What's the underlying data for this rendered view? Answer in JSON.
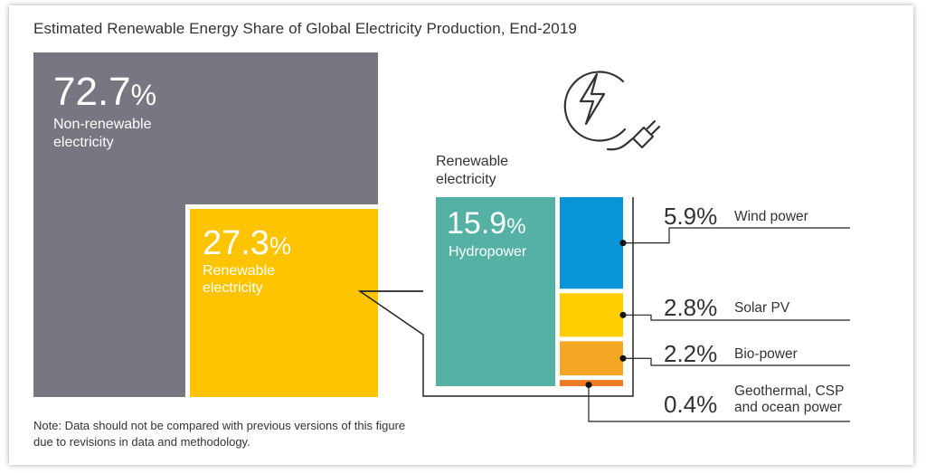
{
  "chart_data": {
    "type": "treemap",
    "title": "Estimated Renewable Energy Share of Global Electricity Production, End-2019",
    "note": [
      "Note: Data should not be compared with previous versions of this figure",
      "due to revisions in data and methodology."
    ],
    "main": [
      {
        "name": "Non-renewable electricity",
        "label_lines": [
          "Non-renewable",
          "electricity"
        ],
        "value": 72.7,
        "display": "72.7",
        "color": "#787680"
      },
      {
        "name": "Renewable electricity",
        "label_lines": [
          "Renewable",
          "electricity"
        ],
        "value": 27.3,
        "display": "27.3",
        "color": "#ffc400"
      }
    ],
    "renewable_breakdown": {
      "header_lines": [
        "Renewable",
        "electricity"
      ],
      "items": [
        {
          "name": "Hydropower",
          "label_lines": [
            "Hydropower"
          ],
          "value": 15.9,
          "display": "15.9",
          "color": "#54b1a4"
        },
        {
          "name": "Wind power",
          "label_lines": [
            "Wind power"
          ],
          "value": 5.9,
          "display": "5.9",
          "color": "#0a95d8"
        },
        {
          "name": "Solar PV",
          "label_lines": [
            "Solar PV"
          ],
          "value": 2.8,
          "display": "2.8",
          "color": "#ffcd00"
        },
        {
          "name": "Bio-power",
          "label_lines": [
            "Bio-power"
          ],
          "value": 2.2,
          "display": "2.2",
          "color": "#f5a623"
        },
        {
          "name": "Geothermal, CSP and ocean power",
          "label_lines": [
            "Geothermal, CSP",
            "and ocean power"
          ],
          "value": 0.4,
          "display": "0.4",
          "color": "#f07a22"
        }
      ]
    },
    "percent_symbol": "%",
    "icon": "electricity-plug-icon"
  }
}
